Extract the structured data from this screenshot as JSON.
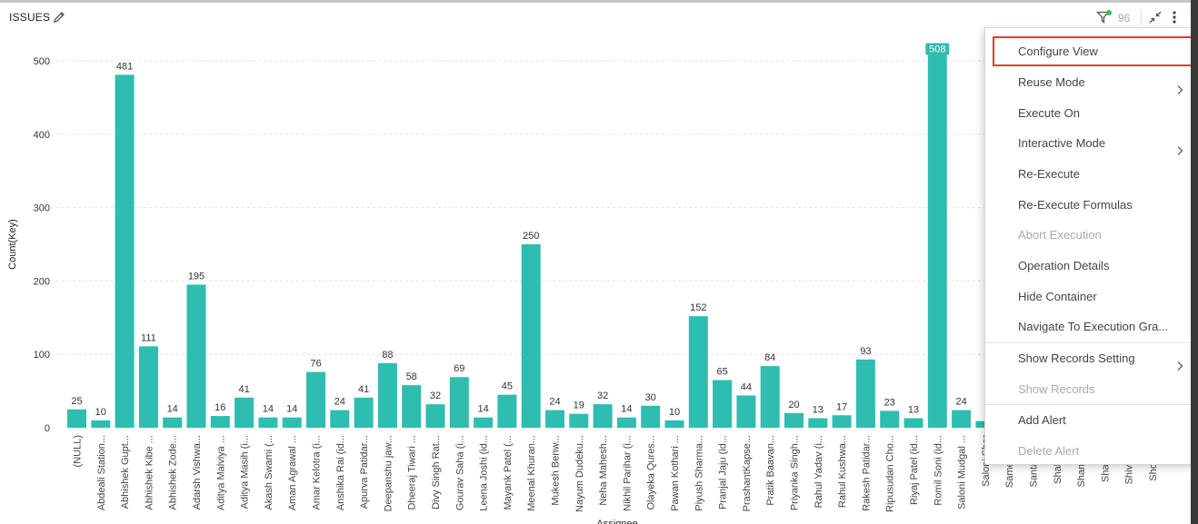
{
  "header": {
    "title": "ISSUES",
    "filter_count": "96",
    "filter_dot_color": "#35c24a",
    "icons": [
      "edit-icon",
      "filter-icon",
      "collapse-icon",
      "kebab-icon"
    ]
  },
  "chart_data": {
    "type": "bar",
    "xlabel": "Assignee",
    "ylabel": "Count(Key)",
    "ylim": [
      0,
      500
    ],
    "yticks": [
      0,
      100,
      200,
      300,
      400,
      500
    ],
    "grid": true,
    "bar_color": "#2ebdb0",
    "categories": [
      "(NULL)",
      "Abdeali Station...",
      "Abhishek Gupt...",
      "Abhishek Kibe ...",
      "Abhishek Zode...",
      "Adarsh Vishwa...",
      "Aditya Malviya ...",
      "Aditya Masih (i...",
      "Akash Swami (...",
      "Aman Agrawal ...",
      "Amar Kelotra (i...",
      "Anshika Rai (id...",
      "Apurva Patidar...",
      "Deepanshu jaw...",
      "Dheeraj Tiwari ...",
      "Divy Singh Rat...",
      "Gourav Saha (i...",
      "Leena Joshi (id...",
      "Mayank Patel (...",
      "Meenal Khuran...",
      "Mukesh Benw...",
      "Nayum Dudeku...",
      "Neha Mahesh...",
      "Nikhil Parihar (i...",
      "Olayeka Qures...",
      "Pawan Kothari ...",
      "Piyush Sharma...",
      "Pranjal Jaju (id...",
      "PrashantKapse...",
      "Pratik Baavan...",
      "Priyanka Singh...",
      "Rahul Yadav (i...",
      "Rahul Kushwa...",
      "Rakesh Patidar...",
      "Ripusudan Cho...",
      "Riyaj Patel (id...",
      "Romil Soni (id...",
      "Saloni Mudgal ...",
      "Saloni Shar",
      "Sameeksha",
      "Santa Verm",
      "Shahbaz S",
      "Shambhu P",
      "Shamshuc",
      "Shivam Gu",
      "Shoaib Kh"
    ],
    "values": [
      25,
      10,
      481,
      111,
      14,
      195,
      16,
      41,
      14,
      14,
      76,
      24,
      41,
      88,
      58,
      32,
      69,
      14,
      45,
      250,
      24,
      19,
      32,
      14,
      30,
      10,
      152,
      65,
      44,
      84,
      20,
      13,
      17,
      93,
      23,
      13,
      508,
      24,
      9,
      null,
      null,
      null,
      null,
      null,
      null,
      null
    ],
    "data_labels": [
      "25",
      "10",
      "481",
      "111",
      "14",
      "195",
      "16",
      "41",
      "14",
      "14",
      "76",
      "24",
      "41",
      "88",
      "58",
      "32",
      "69",
      "14",
      "45",
      "250",
      "24",
      "19",
      "32",
      "14",
      "30",
      "10",
      "152",
      "65",
      "44",
      "84",
      "20",
      "13",
      "17",
      "93",
      "23",
      "13",
      "508",
      "24",
      "",
      "",
      "",
      "",
      "",
      "",
      "",
      ""
    ],
    "highlighted_label": "508"
  },
  "menu": {
    "items": [
      {
        "label": "Configure View",
        "disabled": false,
        "submenu": false,
        "highlighted": true
      },
      {
        "label": "Reuse Mode",
        "disabled": false,
        "submenu": true
      },
      {
        "label": "Execute On",
        "disabled": false,
        "submenu": false
      },
      {
        "label": "Interactive Mode",
        "disabled": false,
        "submenu": true
      },
      {
        "label": "Re-Execute",
        "disabled": false,
        "submenu": false
      },
      {
        "label": "Re-Execute Formulas",
        "disabled": false,
        "submenu": false
      },
      {
        "label": "Abort Execution",
        "disabled": true,
        "submenu": false
      },
      {
        "label": "Operation Details",
        "disabled": false,
        "submenu": false
      },
      {
        "label": "Hide Container",
        "disabled": false,
        "submenu": false
      },
      {
        "label": "Navigate To Execution Gra...",
        "disabled": false,
        "submenu": false
      },
      {
        "label": "Show Records Setting",
        "disabled": false,
        "submenu": true
      },
      {
        "label": "Show Records",
        "disabled": true,
        "submenu": false
      },
      {
        "label": "Add Alert",
        "disabled": false,
        "submenu": false
      },
      {
        "label": "Delete Alert",
        "disabled": true,
        "submenu": false
      }
    ]
  }
}
